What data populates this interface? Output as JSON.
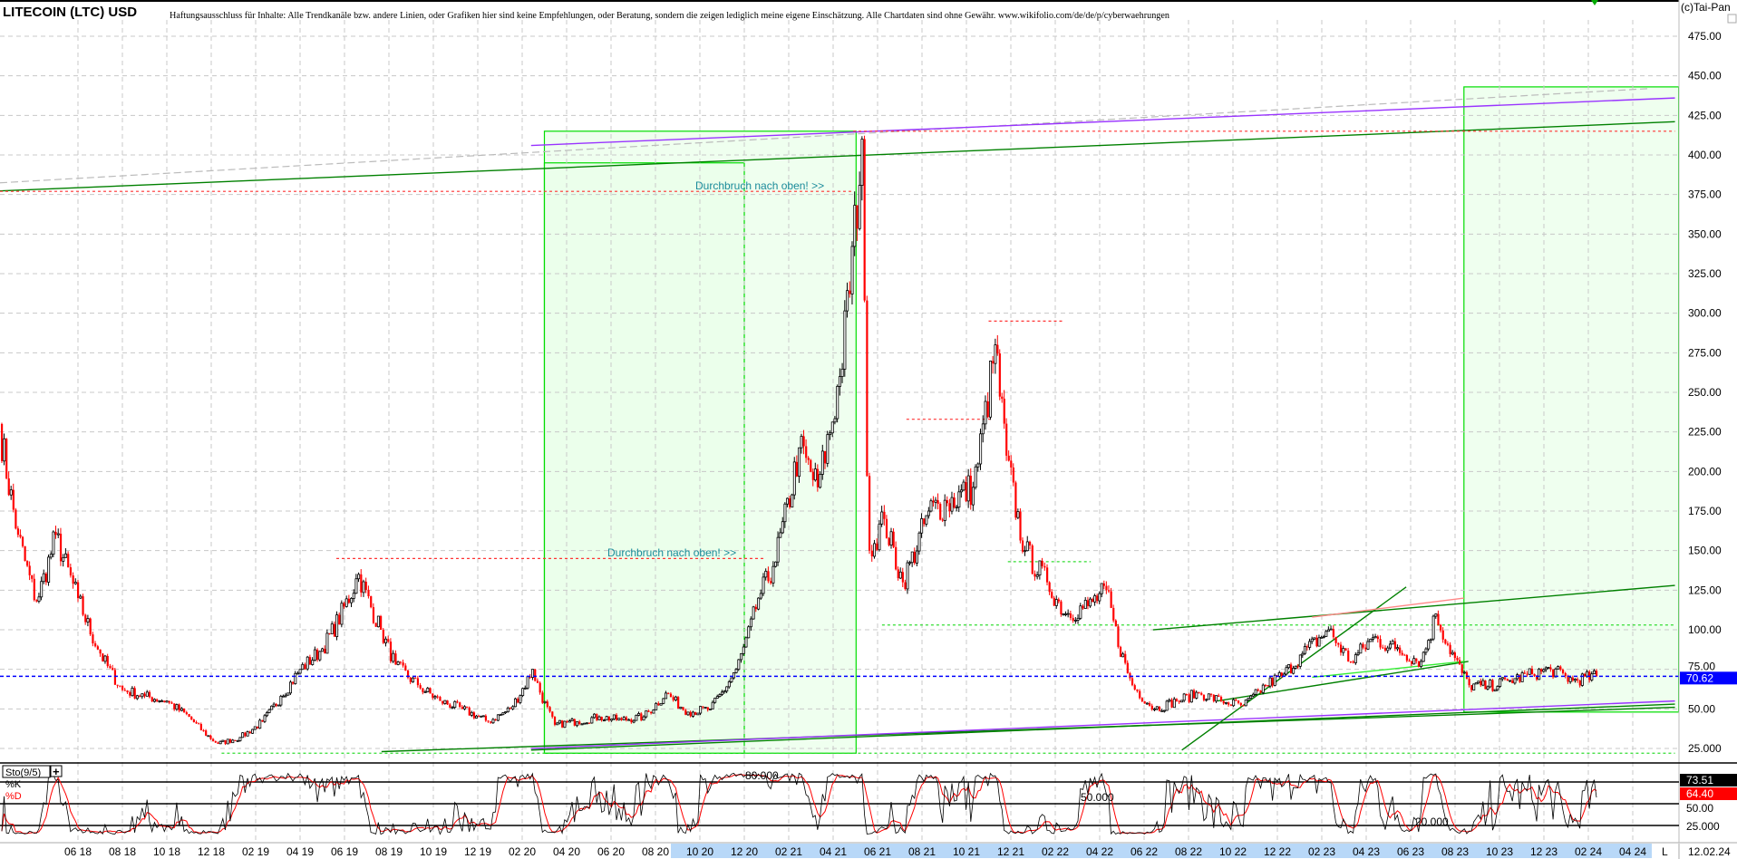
{
  "header": {
    "title": "LITECOIN (LTC) USD",
    "disclaimer": "Haftungsausschluss für Inhalte: Alle Trendkanäle bzw. andere Linien, oder Grafiken hier sind keine Empfehlungen, oder Beratung, sondern die zeigen lediglich meine eigene Einschätzung. Alle Chartdaten sind ohne Gewähr.  www.wikifolio.com/de/de/p/cyberwaehrungen",
    "copyright": "(c)Tai-Pan"
  },
  "annotations": [
    "Durchbruch nach oben! >>",
    "Durchbruch nach oben! >>"
  ],
  "indicator": {
    "name": "Sto(9/5)",
    "add_button": "+",
    "k_label": "%K",
    "d_label": "%D",
    "level_labels": [
      "80.000",
      "50.000",
      "20.000"
    ],
    "k_value": "73.51",
    "d_value": "64.40",
    "axis_labels": [
      "50.00",
      "25.000"
    ]
  },
  "footer": {
    "mode": "L",
    "date": "12.02.24"
  },
  "colors": {
    "up": "#000000",
    "down": "#ff0000",
    "last_price": "#0000ff",
    "box_fill": "#eaffea",
    "box_stroke": "#00dd00",
    "k_line": "#000000",
    "d_line": "#ff0000"
  },
  "chart_data": {
    "type": "candlestick",
    "title": "LITECOIN (LTC) USD",
    "ylim": [
      20,
      485
    ],
    "y_ticks": [
      "475.00",
      "450.00",
      "425.00",
      "400.00",
      "375.00",
      "350.00",
      "325.00",
      "300.00",
      "275.00",
      "250.00",
      "225.00",
      "200.00",
      "175.00",
      "150.00",
      "125.00",
      "100.00",
      "75.00",
      "50.00",
      "25.000"
    ],
    "x_ticks": [
      "06 18",
      "08 18",
      "10 18",
      "12 18",
      "02 19",
      "04 19",
      "06 19",
      "08 19",
      "10 19",
      "12 19",
      "02 20",
      "04 20",
      "06 20",
      "08 20",
      "10 20",
      "12 20",
      "02 21",
      "04 21",
      "06 21",
      "08 21",
      "10 21",
      "12 21",
      "02 22",
      "04 22",
      "06 22",
      "08 22",
      "10 22",
      "12 22",
      "02 23",
      "04 23",
      "06 23",
      "08 23",
      "10 23",
      "12 23",
      "02 24",
      "04 24"
    ],
    "last_price": "70.62",
    "grid": true,
    "price_path": [
      [
        "2018-02-15",
        230
      ],
      [
        "2018-03-10",
        160
      ],
      [
        "2018-04-05",
        118
      ],
      [
        "2018-05-01",
        160
      ],
      [
        "2018-06-01",
        120
      ],
      [
        "2018-07-01",
        85
      ],
      [
        "2018-08-01",
        62
      ],
      [
        "2018-09-01",
        58
      ],
      [
        "2018-10-01",
        55
      ],
      [
        "2018-11-01",
        45
      ],
      [
        "2018-12-10",
        28
      ],
      [
        "2019-01-10",
        32
      ],
      [
        "2019-02-10",
        42
      ],
      [
        "2019-03-05",
        58
      ],
      [
        "2019-04-01",
        75
      ],
      [
        "2019-05-01",
        88
      ],
      [
        "2019-06-20",
        135
      ],
      [
        "2019-07-20",
        100
      ],
      [
        "2019-08-10",
        78
      ],
      [
        "2019-09-10",
        65
      ],
      [
        "2019-10-10",
        55
      ],
      [
        "2019-11-10",
        50
      ],
      [
        "2019-12-15",
        42
      ],
      [
        "2020-01-15",
        50
      ],
      [
        "2020-02-15",
        75
      ],
      [
        "2020-03-15",
        40
      ],
      [
        "2020-04-15",
        42
      ],
      [
        "2020-05-15",
        45
      ],
      [
        "2020-06-15",
        43
      ],
      [
        "2020-07-15",
        45
      ],
      [
        "2020-08-15",
        60
      ],
      [
        "2020-09-15",
        48
      ],
      [
        "2020-10-15",
        50
      ],
      [
        "2020-11-20",
        75
      ],
      [
        "2020-12-20",
        120
      ],
      [
        "2021-01-10",
        140
      ],
      [
        "2021-02-15",
        215
      ],
      [
        "2021-03-10",
        190
      ],
      [
        "2021-04-10",
        260
      ],
      [
        "2021-05-10",
        410
      ],
      [
        "2021-05-20",
        150
      ],
      [
        "2021-06-10",
        170
      ],
      [
        "2021-07-05",
        130
      ],
      [
        "2021-08-10",
        175
      ],
      [
        "2021-09-05",
        180
      ],
      [
        "2021-10-10",
        190
      ],
      [
        "2021-11-10",
        280
      ],
      [
        "2021-11-25",
        210
      ],
      [
        "2021-12-20",
        150
      ],
      [
        "2022-01-20",
        130
      ],
      [
        "2022-02-15",
        110
      ],
      [
        "2022-03-15",
        115
      ],
      [
        "2022-04-10",
        125
      ],
      [
        "2022-05-15",
        65
      ],
      [
        "2022-06-15",
        50
      ],
      [
        "2022-07-15",
        55
      ],
      [
        "2022-08-15",
        60
      ],
      [
        "2022-09-15",
        55
      ],
      [
        "2022-10-15",
        52
      ],
      [
        "2022-11-15",
        65
      ],
      [
        "2022-12-10",
        72
      ],
      [
        "2023-01-05",
        85
      ],
      [
        "2023-02-10",
        100
      ],
      [
        "2023-03-10",
        80
      ],
      [
        "2023-04-10",
        95
      ],
      [
        "2023-05-10",
        88
      ],
      [
        "2023-06-15",
        80
      ],
      [
        "2023-07-05",
        110
      ],
      [
        "2023-08-20",
        65
      ],
      [
        "2023-09-15",
        64
      ],
      [
        "2023-10-15",
        68
      ],
      [
        "2023-11-15",
        72
      ],
      [
        "2023-12-10",
        75
      ],
      [
        "2024-01-10",
        68
      ],
      [
        "2024-02-12",
        70.62
      ]
    ],
    "trendlines": [
      {
        "from": [
          "2018-02-01",
          377
        ],
        "to": [
          "2024-05-28",
          421
        ],
        "color": "#008000",
        "style": "solid"
      },
      {
        "from": [
          "2018-02-01",
          382
        ],
        "to": [
          "2024-04-25",
          442
        ],
        "color": "#bbbbbb",
        "style": "dashed"
      },
      {
        "from": [
          "2020-02-13",
          406
        ],
        "to": [
          "2024-05-28",
          436
        ],
        "color": "#9933ff",
        "style": "solid"
      },
      {
        "from": [
          "2018-02-01",
          377
        ],
        "to": [
          "2021-04-28",
          377
        ],
        "color": "#ff3333",
        "style": "dotted"
      },
      {
        "from": [
          "2021-04-28",
          415
        ],
        "to": [
          "2024-05-28",
          415
        ],
        "color": "#ff3333",
        "style": "dotted"
      },
      {
        "from": [
          "2019-05-20",
          145
        ],
        "to": [
          "2020-12-28",
          145
        ],
        "color": "#ff3333",
        "style": "dotted"
      },
      {
        "from": [
          "2021-07-10",
          233
        ],
        "to": [
          "2021-11-04",
          233
        ],
        "color": "#ff3333",
        "style": "dotted"
      },
      {
        "from": [
          "2021-11-01",
          295
        ],
        "to": [
          "2022-02-12",
          295
        ],
        "color": "#ff3333",
        "style": "dotted"
      },
      {
        "from": [
          "2021-11-27",
          143
        ],
        "to": [
          "2022-03-19",
          143
        ],
        "color": "#33dd33",
        "style": "dotted"
      },
      {
        "from": [
          "2021-06-07",
          103
        ],
        "to": [
          "2024-05-28",
          103
        ],
        "color": "#33dd33",
        "style": "dotted"
      },
      {
        "from": [
          "2018-12-15",
          22
        ],
        "to": [
          "2024-05-28",
          22
        ],
        "color": "#33dd33",
        "style": "dotted"
      },
      {
        "from": [
          "2019-07-21",
          23
        ],
        "to": [
          "2024-05-28",
          51
        ],
        "color": "#008000",
        "style": "solid"
      },
      {
        "from": [
          "2020-02-13",
          25
        ],
        "to": [
          "2024-05-28",
          55
        ],
        "color": "#9933ff",
        "style": "solid"
      },
      {
        "from": [
          "2020-02-13",
          24
        ],
        "to": [
          "2024-05-28",
          53
        ],
        "color": "#008000",
        "style": "solid"
      },
      {
        "from": [
          "2022-06-13",
          100
        ],
        "to": [
          "2024-05-28",
          128
        ],
        "color": "#008000",
        "style": "solid"
      },
      {
        "from": [
          "2022-07-22",
          24
        ],
        "to": [
          "2023-05-25",
          127
        ],
        "color": "#008000",
        "style": "solid"
      },
      {
        "from": [
          "2022-09-10",
          55
        ],
        "to": [
          "2023-08-19",
          80
        ],
        "color": "#008000",
        "style": "solid"
      },
      {
        "from": [
          "2023-01-18",
          70
        ],
        "to": [
          "2023-08-13",
          80
        ],
        "color": "#33ee33",
        "style": "solid"
      },
      {
        "from": [
          "2023-01-18",
          108
        ],
        "to": [
          "2023-08-13",
          120
        ],
        "color": "#ff8888",
        "style": "solid"
      }
    ],
    "boxes": [
      {
        "from": [
          "2020-03-01",
          22
        ],
        "to": [
          "2021-05-02",
          415
        ]
      },
      {
        "from": [
          "2020-03-01",
          22
        ],
        "to": [
          "2020-12-01",
          395
        ]
      },
      {
        "from": [
          "2023-08-13",
          48
        ],
        "to": [
          "2024-06-03",
          443
        ]
      }
    ],
    "indicator": {
      "type": "stochastic",
      "period": 9,
      "smoothing": 5,
      "levels": [
        80,
        50,
        20
      ],
      "k_last": 73.51,
      "d_last": 64.4
    }
  }
}
